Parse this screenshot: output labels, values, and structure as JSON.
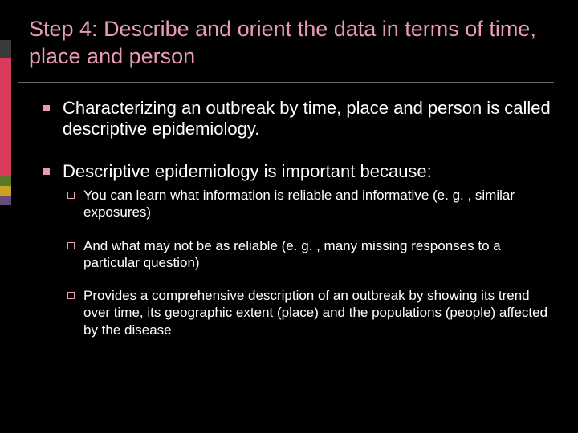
{
  "colors": {
    "background": "#000000",
    "title_text": "#e89bb7",
    "body_text": "#ffffff",
    "bullet_fill": "#e89bb7",
    "sub_bullet_border": "#e89bb7",
    "title_underline": "rgba(255,255,255,0.4)"
  },
  "accent_bar": {
    "segments": [
      {
        "color": "#3a3a3a",
        "height": 22
      },
      {
        "color": "#d83b5b",
        "height": 148
      },
      {
        "color": "#5a7a2a",
        "height": 12
      },
      {
        "color": "#c9a227",
        "height": 12
      },
      {
        "color": "#6a4a7a",
        "height": 12
      }
    ]
  },
  "title": "Step 4: Describe and orient the data in terms of time, place and person",
  "typography": {
    "title_fontsize": 27,
    "main_bullet_fontsize": 22,
    "sub_bullet_fontsize": 17
  },
  "bullets": [
    {
      "text": "Characterizing an outbreak by time, place and person is called descriptive epidemiology."
    },
    {
      "text": "Descriptive epidemiology is important because:",
      "sub": [
        "You can learn what information is reliable and informative (e. g. , similar exposures)",
        "And what may not be as reliable (e. g. , many missing responses to a particular question)",
        "Provides a comprehensive description of an outbreak by showing its trend over time, its geographic extent (place) and the populations (people) affected by the disease"
      ]
    }
  ]
}
